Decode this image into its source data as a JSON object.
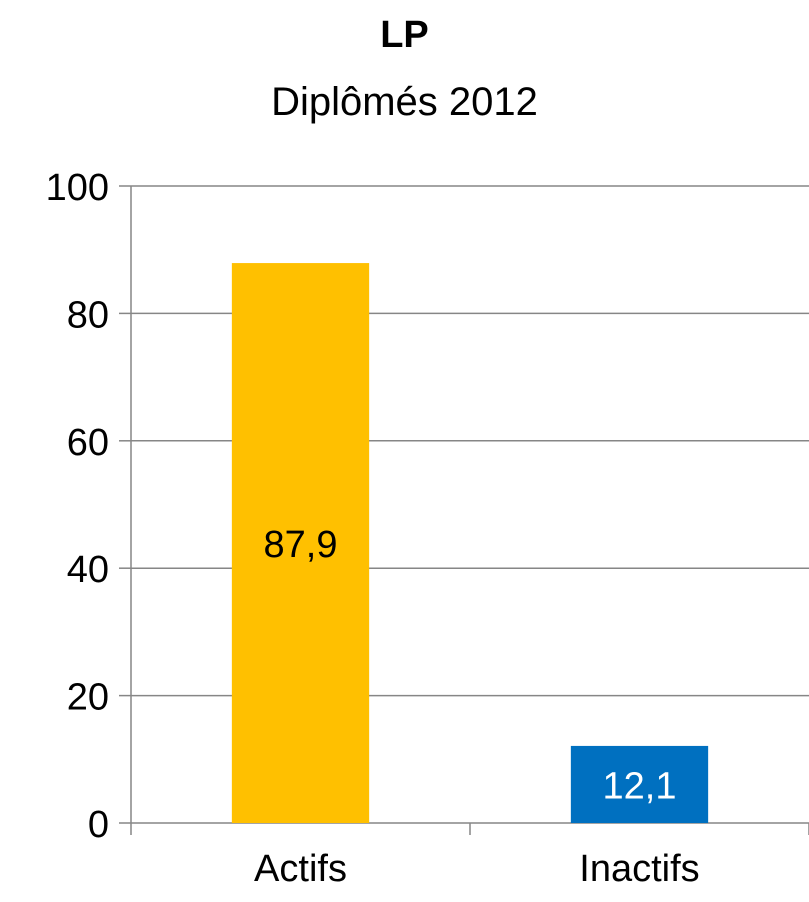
{
  "chart_data": {
    "type": "bar",
    "title": "LP",
    "subtitle": "Diplômés 2012",
    "categories": [
      "Actifs",
      "Inactifs"
    ],
    "values": [
      87.9,
      12.1
    ],
    "data_labels": [
      "87,9",
      "12,1"
    ],
    "colors": [
      "#FFC000",
      "#0070C0"
    ],
    "label_colors": [
      "#000000",
      "#FFFFFF"
    ],
    "ylim": [
      0,
      100
    ],
    "yticks": [
      0,
      20,
      40,
      60,
      80,
      100
    ],
    "ytick_labels": [
      "0",
      "20",
      "40",
      "60",
      "80",
      "100"
    ],
    "grid": true,
    "legend": "none",
    "xlabel": "",
    "ylabel": ""
  }
}
